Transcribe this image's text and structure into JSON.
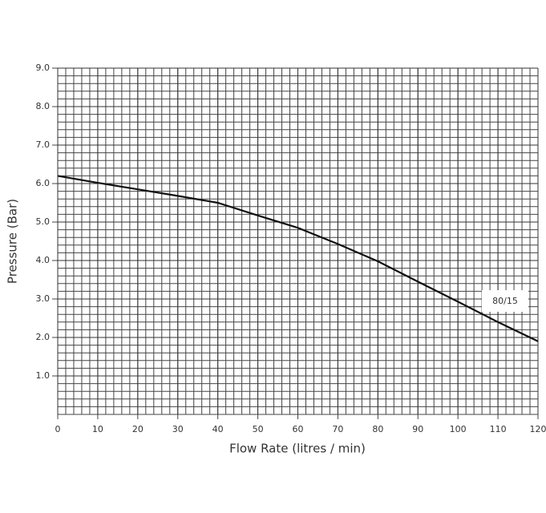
{
  "chart_data": {
    "type": "line",
    "xlabel": "Flow Rate (litres / min)",
    "ylabel": "Pressure (Bar)",
    "x": [
      0,
      10,
      20,
      30,
      40,
      50,
      60,
      70,
      80,
      90,
      100,
      110,
      120
    ],
    "series": [
      {
        "name": "80/15",
        "color": "#111111",
        "values": [
          6.2,
          6.02,
          5.85,
          5.68,
          5.5,
          5.17,
          4.85,
          4.43,
          3.98,
          3.45,
          2.93,
          2.4,
          1.9
        ]
      }
    ],
    "xlim": [
      0,
      120
    ],
    "xticks": [
      0,
      10,
      20,
      30,
      40,
      50,
      60,
      70,
      80,
      90,
      100,
      110,
      120
    ],
    "ylim": [
      0,
      9
    ],
    "yticks": [
      {
        "value": 1,
        "label": "1.0"
      },
      {
        "value": 2,
        "label": "2.0"
      },
      {
        "value": 3,
        "label": "3.0"
      },
      {
        "value": 4,
        "label": "4.0"
      },
      {
        "value": 5,
        "label": "5.0"
      },
      {
        "value": 6,
        "label": "6.0"
      },
      {
        "value": 7,
        "label": "7.0"
      },
      {
        "value": 8,
        "label": "8.0"
      },
      {
        "value": 9,
        "label": "9.0"
      }
    ],
    "grid": true,
    "minor_grid_divisions": 5
  }
}
